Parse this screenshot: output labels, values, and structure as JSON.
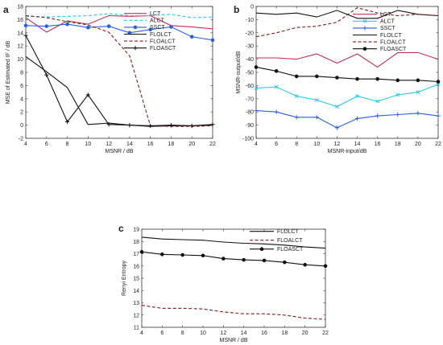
{
  "chart_data": [
    {
      "panel": "a",
      "type": "line",
      "title": "",
      "xlabel": "MSNR / dB",
      "ylabel": "MSE of Estimated IF / dB",
      "xlim": [
        4,
        22
      ],
      "ylim": [
        -2,
        18
      ],
      "xticks": [
        4,
        6,
        8,
        10,
        12,
        14,
        16,
        18,
        20,
        22
      ],
      "yticks": [
        -2,
        0,
        2,
        4,
        6,
        8,
        10,
        12,
        14,
        16,
        18
      ],
      "legend_position": "top-right",
      "grid": false,
      "series": [
        {
          "name": "LCT",
          "color": "#c0304e",
          "dash": "solid",
          "marker": "none",
          "x": [
            4,
            6,
            8,
            10,
            12,
            14,
            16,
            18,
            20,
            22
          ],
          "values": [
            16.3,
            14.1,
            15.8,
            15.3,
            16.6,
            16.5,
            16.6,
            15.1,
            14.9,
            14.6
          ]
        },
        {
          "name": "ALCT",
          "color": "#2ec4e6",
          "dash": "dashed",
          "marker": "none",
          "x": [
            4,
            6,
            8,
            10,
            12,
            14,
            16,
            18,
            20,
            22
          ],
          "values": [
            16.5,
            16.4,
            16.5,
            16.6,
            16.9,
            16.6,
            16.6,
            16.8,
            16.3,
            16.4
          ]
        },
        {
          "name": "SSCT",
          "color": "#2b5fd9",
          "dash": "solid",
          "marker": "dot",
          "x": [
            4,
            6,
            8,
            10,
            12,
            14,
            16,
            18,
            20,
            22
          ],
          "values": [
            15.1,
            15.0,
            15.3,
            14.8,
            15.0,
            14.0,
            14.5,
            14.9,
            13.4,
            12.9
          ]
        },
        {
          "name": "FLOLCT",
          "color": "#111111",
          "dash": "solid",
          "marker": "none",
          "x": [
            4,
            6,
            8,
            10,
            12,
            14,
            16,
            18,
            20,
            22
          ],
          "values": [
            10.4,
            8.1,
            5.7,
            0.1,
            0.3,
            0.0,
            -0.2,
            -0.1,
            -0.1,
            0.0
          ]
        },
        {
          "name": "FLOALCT",
          "color": "#7a1f1f",
          "dash": "dashed",
          "marker": "none",
          "x": [
            4,
            6,
            8,
            10,
            12,
            14,
            16,
            18,
            20,
            22
          ],
          "values": [
            16.6,
            16.3,
            15.7,
            15.2,
            14.1,
            10.5,
            -0.1,
            -0.2,
            -0.2,
            -0.1
          ]
        },
        {
          "name": "FLOASCT",
          "color": "#111111",
          "dash": "solid",
          "marker": "plus",
          "x": [
            4,
            6,
            8,
            10,
            12,
            14,
            16,
            18,
            20,
            22
          ],
          "values": [
            13.6,
            7.6,
            0.5,
            4.6,
            0.1,
            0.0,
            -0.1,
            0.0,
            -0.1,
            0.1
          ]
        }
      ]
    },
    {
      "panel": "b",
      "type": "line",
      "title": "",
      "xlabel": "MSNR-input/dB",
      "ylabel": "MSNR-output/dB",
      "xlim": [
        4,
        22
      ],
      "ylim": [
        -100,
        0
      ],
      "xticks": [
        4,
        6,
        8,
        10,
        12,
        14,
        16,
        18,
        20,
        22
      ],
      "yticks": [
        -100,
        -90,
        -80,
        -70,
        -60,
        -50,
        -40,
        -30,
        -20,
        -10,
        0
      ],
      "legend_position": "top-right",
      "grid": false,
      "series": [
        {
          "name": "LCT",
          "color": "#c0304e",
          "dash": "solid",
          "marker": "none",
          "x": [
            4,
            6,
            8,
            10,
            12,
            14,
            16,
            18,
            20,
            22
          ],
          "values": [
            -39,
            -39,
            -40,
            -36,
            -43,
            -36,
            -46,
            -35,
            -35,
            -40
          ]
        },
        {
          "name": "ALCT",
          "color": "#2ec4e6",
          "dash": "solid",
          "marker": "x",
          "x": [
            4,
            6,
            8,
            10,
            12,
            14,
            16,
            18,
            20,
            22
          ],
          "values": [
            -62,
            -61,
            -68,
            -71,
            -76,
            -68,
            -72,
            -67,
            -65,
            -59
          ]
        },
        {
          "name": "SSCT",
          "color": "#2b5fd9",
          "dash": "solid",
          "marker": "plus",
          "x": [
            4,
            6,
            8,
            10,
            12,
            14,
            16,
            18,
            20,
            22
          ],
          "values": [
            -79,
            -80,
            -84,
            -84,
            -92,
            -85,
            -83,
            -82,
            -81,
            -83
          ]
        },
        {
          "name": "FLOLCT",
          "color": "#111111",
          "dash": "solid",
          "marker": "none",
          "x": [
            4,
            6,
            8,
            10,
            12,
            14,
            16,
            18,
            20,
            22
          ],
          "values": [
            -5,
            -6,
            -5,
            -8,
            -3,
            -9,
            -9,
            -3,
            -6,
            -7
          ]
        },
        {
          "name": "FLOALCT",
          "color": "#7a1f1f",
          "dash": "dashed",
          "marker": "none",
          "x": [
            4,
            6,
            8,
            10,
            12,
            14,
            16,
            18,
            20,
            22
          ],
          "values": [
            -23,
            -20,
            -16,
            -15,
            -12,
            -1,
            -5,
            -7,
            -6,
            -7
          ]
        },
        {
          "name": "FLOASCT",
          "color": "#111111",
          "dash": "solid",
          "marker": "dot",
          "x": [
            4,
            6,
            8,
            10,
            12,
            14,
            16,
            18,
            20,
            22
          ],
          "values": [
            -46,
            -49,
            -53,
            -53,
            -54,
            -55,
            -55,
            -56,
            -56,
            -57
          ]
        }
      ]
    },
    {
      "panel": "c",
      "type": "line",
      "title": "",
      "xlabel": "MSNR / dB",
      "ylabel": "Renyi Entropy",
      "xlim": [
        4,
        22
      ],
      "ylim": [
        11,
        19
      ],
      "xticks": [
        4,
        6,
        8,
        10,
        12,
        14,
        16,
        18,
        20,
        22
      ],
      "yticks": [
        11,
        12,
        13,
        14,
        15,
        16,
        17,
        18,
        19
      ],
      "legend_position": "top-right",
      "grid": false,
      "series": [
        {
          "name": "FLOLCT",
          "color": "#111111",
          "dash": "solid",
          "marker": "none",
          "x": [
            4,
            6,
            8,
            10,
            12,
            14,
            16,
            18,
            20,
            22
          ],
          "values": [
            18.35,
            18.2,
            18.15,
            18.1,
            17.95,
            17.85,
            17.8,
            17.7,
            17.55,
            17.45
          ]
        },
        {
          "name": "FLOALCT",
          "color": "#7a1f1f",
          "dash": "dashed",
          "marker": "none",
          "x": [
            4,
            6,
            8,
            10,
            12,
            14,
            16,
            18,
            20,
            22
          ],
          "values": [
            12.8,
            12.55,
            12.55,
            12.5,
            12.25,
            12.1,
            12.1,
            12.0,
            11.75,
            11.65
          ]
        },
        {
          "name": "FLOASCT",
          "color": "#111111",
          "dash": "solid",
          "marker": "dot",
          "x": [
            4,
            6,
            8,
            10,
            12,
            14,
            16,
            18,
            20,
            22
          ],
          "values": [
            17.15,
            16.95,
            16.9,
            16.85,
            16.6,
            16.5,
            16.45,
            16.3,
            16.1,
            16.0
          ]
        }
      ]
    }
  ]
}
